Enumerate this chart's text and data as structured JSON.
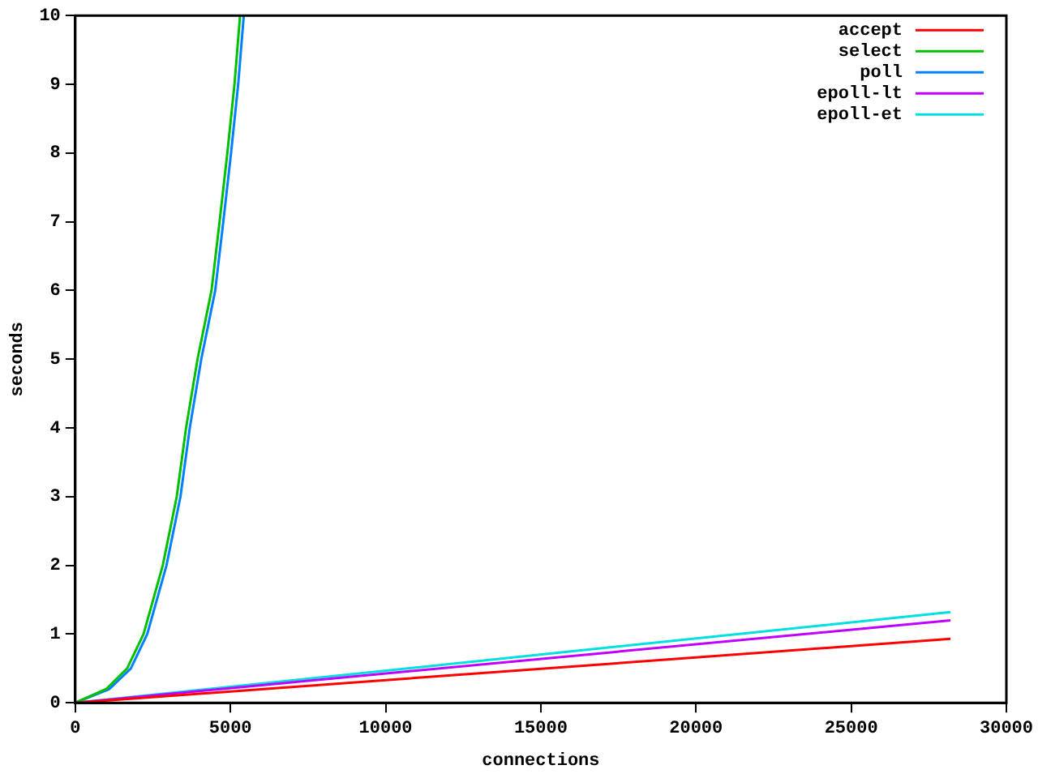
{
  "chart_data": {
    "type": "line",
    "xlabel": "connections",
    "ylabel": "seconds",
    "xlim": [
      0,
      30000
    ],
    "ylim": [
      0,
      10
    ],
    "xticks": [
      0,
      5000,
      10000,
      15000,
      20000,
      25000,
      30000
    ],
    "yticks": [
      0,
      1,
      2,
      3,
      4,
      5,
      6,
      7,
      8,
      9,
      10
    ],
    "grid": false,
    "legend": "top right",
    "series": [
      {
        "name": "accept",
        "color": "#ff0000",
        "x": [
          0,
          28200
        ],
        "values": [
          0,
          0.93
        ]
      },
      {
        "name": "select",
        "color": "#00c000",
        "x": [
          0,
          1000,
          1670,
          2200,
          2820,
          3270,
          3570,
          3940,
          4390,
          4650,
          4900,
          5130,
          5310
        ],
        "values": [
          0,
          0.2,
          0.5,
          1,
          2,
          3,
          4,
          5,
          6,
          7,
          8,
          9,
          10
        ]
      },
      {
        "name": "poll",
        "color": "#0080ff",
        "x": [
          0,
          1100,
          1790,
          2320,
          2940,
          3390,
          3690,
          4060,
          4510,
          4770,
          5020,
          5250,
          5430
        ],
        "values": [
          0,
          0.2,
          0.5,
          1,
          2,
          3,
          4,
          5,
          6,
          7,
          8,
          9,
          10
        ]
      },
      {
        "name": "epoll-lt",
        "color": "#c000ff",
        "x": [
          0,
          28200
        ],
        "values": [
          0,
          1.2
        ]
      },
      {
        "name": "epoll-et",
        "color": "#00e0e0",
        "x": [
          0,
          28200
        ],
        "values": [
          0,
          1.32
        ]
      }
    ]
  }
}
